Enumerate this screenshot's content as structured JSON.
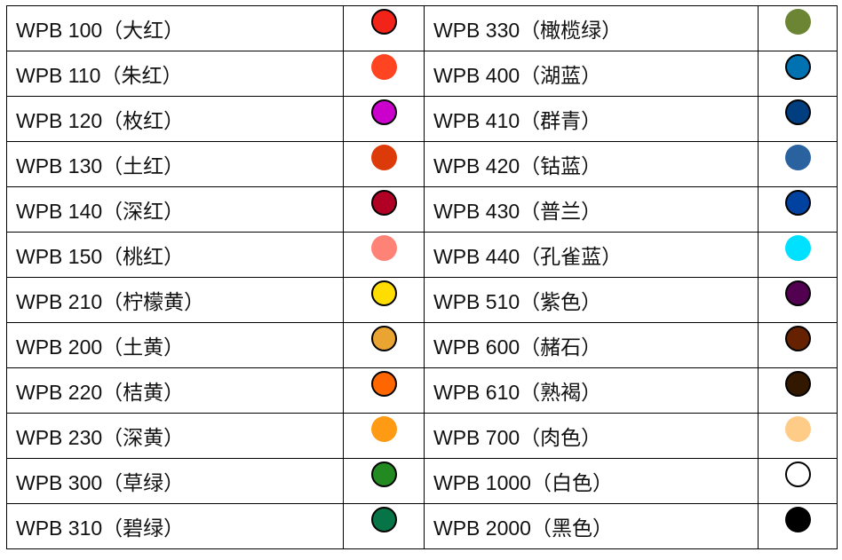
{
  "left": [
    {
      "label": "WPB 100（大红）",
      "color": "#f2241a",
      "outlined": true
    },
    {
      "label": "WPB 110（朱红）",
      "color": "#ff4422",
      "outlined": false
    },
    {
      "label": "WPB 120（枚红）",
      "color": "#cc00cc",
      "outlined": true
    },
    {
      "label": "WPB 130（土红）",
      "color": "#dd3a0a",
      "outlined": false
    },
    {
      "label": "WPB 140（深红）",
      "color": "#b00024",
      "outlined": true
    },
    {
      "label": "WPB 150（桃红）",
      "color": "#ff8277",
      "outlined": false
    },
    {
      "label": "WPB 210（柠檬黄）",
      "color": "#ffdd00",
      "outlined": true
    },
    {
      "label": "WPB 200（土黄）",
      "color": "#eaa432",
      "outlined": true
    },
    {
      "label": "WPB 220（桔黄）",
      "color": "#ff6600",
      "outlined": true
    },
    {
      "label": "WPB 230（深黄）",
      "color": "#ff9a14",
      "outlined": false
    },
    {
      "label": "WPB 300（草绿）",
      "color": "#238a22",
      "outlined": true
    },
    {
      "label": "WPB 310（碧绿）",
      "color": "#067446",
      "outlined": true
    }
  ],
  "right": [
    {
      "label": "WPB 330（橄榄绿）",
      "color": "#6b8534",
      "outlined": false
    },
    {
      "label": "WPB 400（湖蓝）",
      "color": "#0072b2",
      "outlined": true
    },
    {
      "label": "WPB 410（群青）",
      "color": "#003e80",
      "outlined": true
    },
    {
      "label": "WPB 420（钴蓝）",
      "color": "#2a62a0",
      "outlined": false
    },
    {
      "label": "WPB 430（普兰）",
      "color": "#0142a0",
      "outlined": true
    },
    {
      "label": "WPB 440（孔雀蓝）",
      "color": "#00e0ff",
      "outlined": false
    },
    {
      "label": "WPB 510（紫色）",
      "color": "#520050",
      "outlined": true
    },
    {
      "label": "WPB 600（赭石）",
      "color": "#662200",
      "outlined": true
    },
    {
      "label": "WPB 610（熟褐）",
      "color": "#331800",
      "outlined": true
    },
    {
      "label": "WPB 700（肉色）",
      "color": "#ffcc88",
      "outlined": false
    },
    {
      "label": "WPB 1000（白色）",
      "color": "#ffffff",
      "outlined": true
    },
    {
      "label": "WPB 2000（黑色）",
      "color": "#000000",
      "outlined": false
    }
  ]
}
